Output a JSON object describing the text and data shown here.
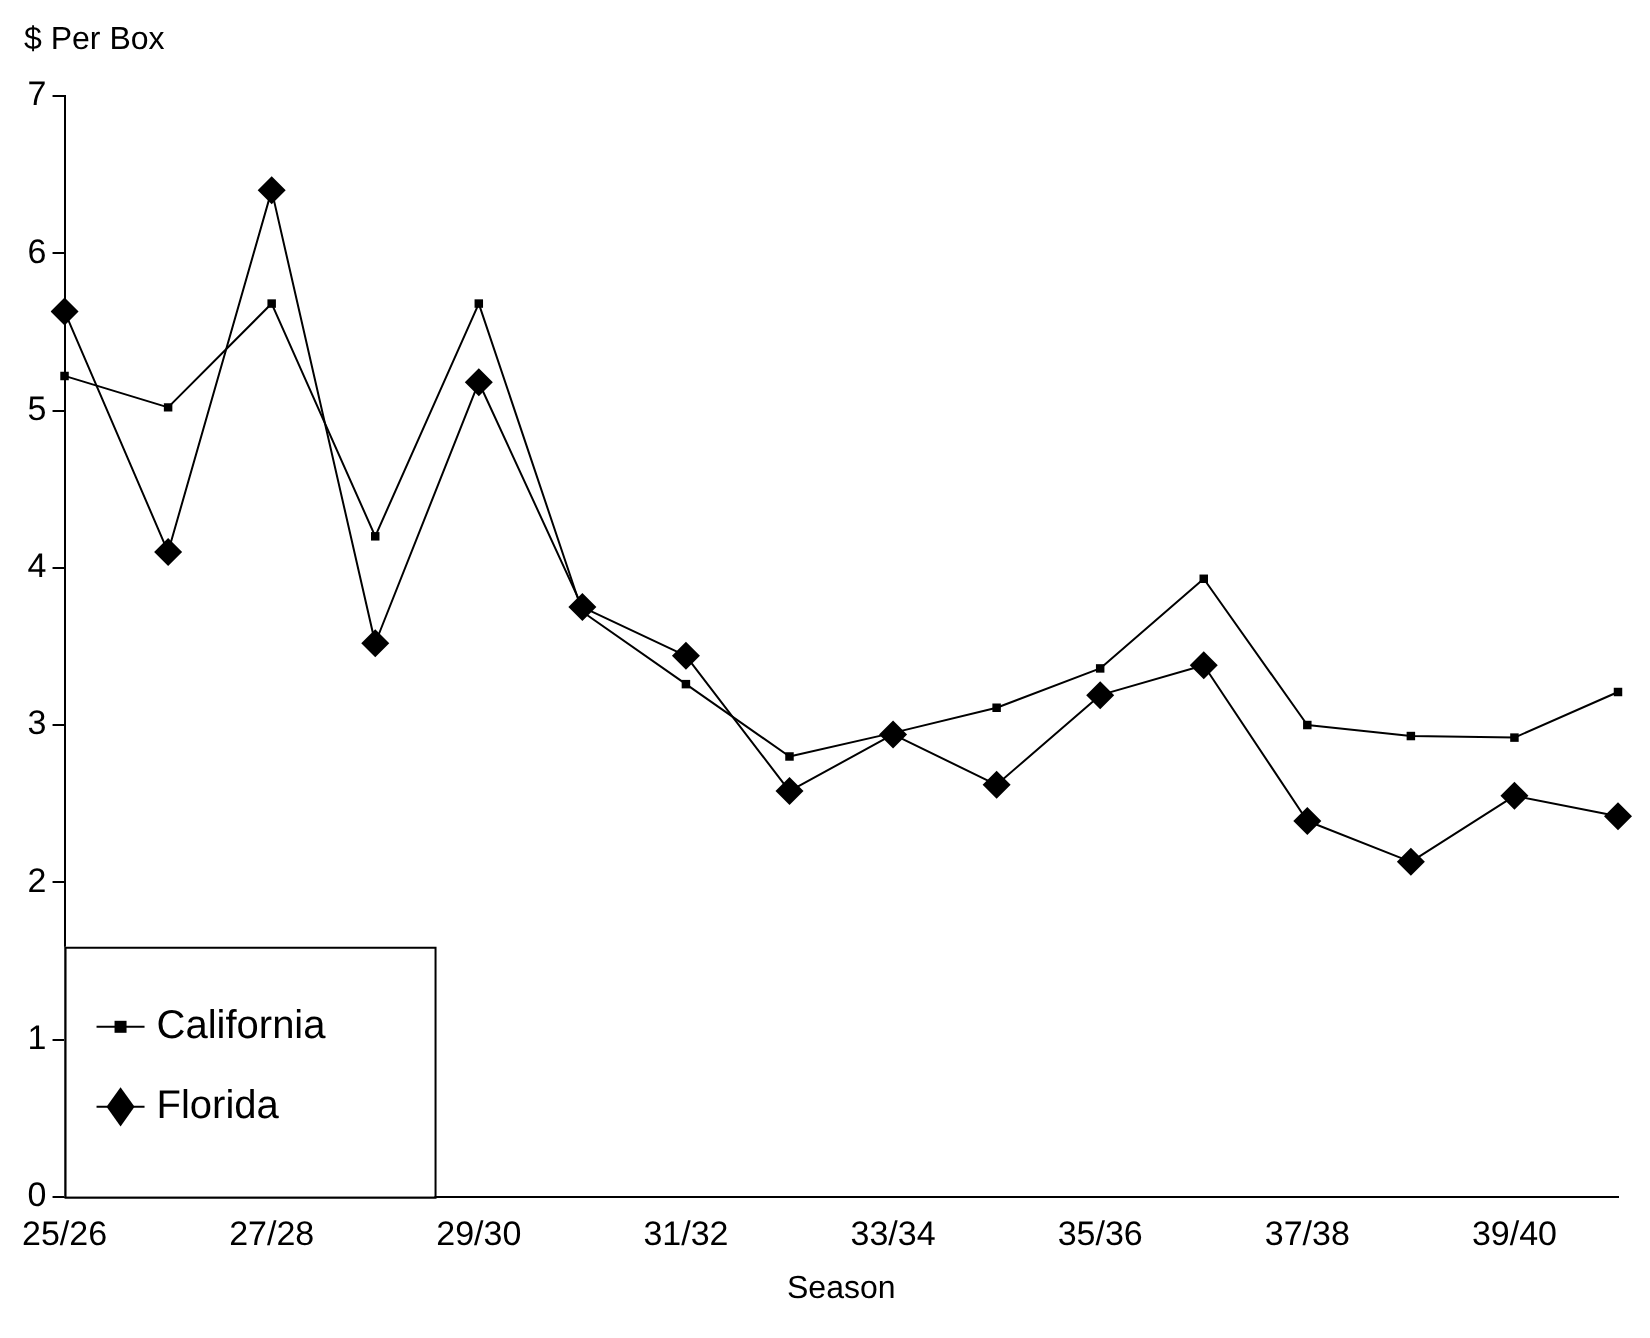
{
  "chart_data": {
    "type": "line",
    "ylabel": "$ Per Box",
    "xlabel": "Season",
    "categories": [
      "25/26",
      null,
      "27/28",
      null,
      "29/30",
      null,
      "31/32",
      null,
      "33/34",
      null,
      "35/36",
      null,
      "37/38",
      null,
      "39/40",
      null
    ],
    "series": [
      {
        "name": "California",
        "color": "#000000",
        "marker": "square",
        "values": [
          5.22,
          5.02,
          5.68,
          4.2,
          5.68,
          3.72,
          3.26,
          2.8,
          2.95,
          3.11,
          3.36,
          3.93,
          3.0,
          2.93,
          2.92,
          3.21
        ]
      },
      {
        "name": "Florida",
        "color": "#000000",
        "marker": "diamond",
        "values": [
          5.63,
          4.1,
          6.4,
          3.52,
          5.18,
          3.75,
          3.44,
          2.58,
          2.94,
          2.62,
          3.19,
          3.38,
          2.39,
          2.13,
          2.55,
          2.42
        ]
      }
    ],
    "ylim": [
      0,
      7
    ],
    "yticks": [
      0,
      1,
      2,
      3,
      4,
      5,
      6,
      7
    ],
    "grid": false,
    "legend": "bottom left",
    "line_style": "solid"
  }
}
